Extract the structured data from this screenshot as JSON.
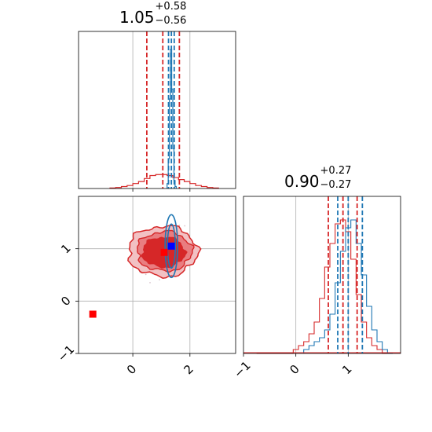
{
  "chart_data": [
    {
      "panel": "top-left",
      "type": "histogram",
      "title": {
        "value": "1.05",
        "upper": "+0.58",
        "lower": "−0.56"
      },
      "xlim": [
        -1.9,
        3.6
      ],
      "grid": true,
      "quantile_lines": {
        "red": [
          0.49,
          1.05,
          1.63
        ],
        "blue": [
          1.25,
          1.35,
          1.45
        ]
      },
      "series": [
        {
          "color": "#d62728",
          "x": [
            -0.7,
            -0.5,
            -0.3,
            -0.1,
            0.1,
            0.3,
            0.5,
            0.7,
            0.9,
            1.1,
            1.3,
            1.5,
            1.7,
            1.9,
            2.1,
            2.3,
            2.5,
            2.7,
            2.9
          ],
          "values": [
            0.5,
            1,
            2,
            3,
            5,
            7,
            10,
            13,
            14,
            14,
            13,
            11,
            9,
            7,
            5,
            3,
            2,
            1,
            0.5
          ]
        },
        {
          "color": "#1f77b4",
          "x": [
            1.22,
            1.26,
            1.3,
            1.34,
            1.38,
            1.42,
            1.46,
            1.5
          ],
          "values": [
            5,
            30,
            90,
            140,
            100,
            40,
            8,
            2
          ]
        }
      ]
    },
    {
      "panel": "bottom-left",
      "type": "scatter",
      "xlim": [
        -1.9,
        3.6
      ],
      "ylim": [
        -1.0,
        2.0
      ],
      "xticks": [
        "0",
        "2"
      ],
      "yticks": [
        "−1",
        "0",
        "1"
      ],
      "grid": true,
      "markers": [
        {
          "color": "#ff0000",
          "x": -1.4,
          "y": -0.25
        },
        {
          "color": "#ff0000",
          "x": 1.1,
          "y": 0.93
        },
        {
          "color": "#0000ff",
          "x": 1.35,
          "y": 1.05
        }
      ],
      "red_contour_center": [
        1.05,
        0.95
      ],
      "blue_contour_center": [
        1.35,
        1.05
      ]
    },
    {
      "panel": "bottom-right",
      "type": "histogram",
      "title": {
        "value": "0.90",
        "upper": "+0.27",
        "lower": "−0.27"
      },
      "xlim": [
        -1.0,
        2.0
      ],
      "xticks": [
        "−1",
        "0",
        "1"
      ],
      "grid": true,
      "quantile_lines": {
        "red": [
          0.62,
          0.9,
          1.17
        ],
        "blue": [
          0.8,
          1.0,
          1.27
        ]
      },
      "series": [
        {
          "color": "#d62728",
          "x": [
            -0.7,
            -0.6,
            -0.5,
            -0.4,
            -0.3,
            -0.2,
            -0.1,
            0.0,
            0.1,
            0.2,
            0.3,
            0.4,
            0.5,
            0.6,
            0.7,
            0.8,
            0.9,
            1.0,
            1.1,
            1.2,
            1.3,
            1.4,
            1.5,
            1.6,
            1.7,
            1.8
          ],
          "values": [
            0,
            0,
            0,
            0,
            0,
            0,
            0,
            1,
            2,
            3,
            5,
            8,
            14,
            22,
            28,
            33,
            34,
            31,
            24,
            15,
            8,
            4,
            2,
            1,
            0,
            0
          ]
        },
        {
          "color": "#1f77b4",
          "x": [
            0.2,
            0.3,
            0.4,
            0.5,
            0.6,
            0.7,
            0.8,
            0.9,
            1.0,
            1.1,
            1.2,
            1.3,
            1.4,
            1.5,
            1.6,
            1.7,
            1.8
          ],
          "values": [
            1,
            2,
            3,
            4,
            6,
            10,
            18,
            26,
            32,
            34,
            28,
            20,
            12,
            6,
            3,
            1,
            0
          ]
        }
      ]
    }
  ]
}
